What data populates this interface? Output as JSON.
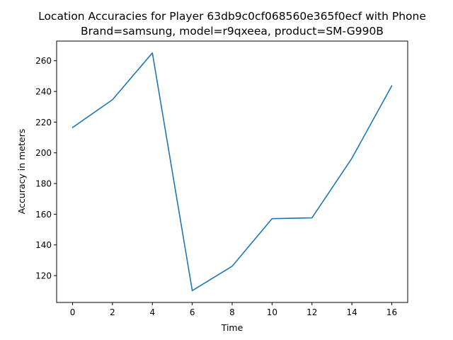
{
  "chart_data": {
    "type": "line",
    "title_line1": "Location Accuracies for Player 63db9c0cf068560e365f0ecf with Phone",
    "title_line2": "Brand=samsung, model=r9qxeea, product=SM-G990B",
    "xlabel": "Time",
    "ylabel": "Accuracy in meters",
    "x": [
      0,
      2,
      4,
      6,
      8,
      10,
      12,
      14,
      16
    ],
    "y": [
      216.5,
      234.6,
      265.1,
      110.2,
      126.1,
      157.1,
      157.6,
      196.4,
      243.6
    ],
    "xlim": [
      -0.8,
      16.8
    ],
    "ylim": [
      102.5,
      272.8
    ],
    "xticks": [
      "0",
      "2",
      "4",
      "6",
      "8",
      "10",
      "12",
      "14",
      "16"
    ],
    "yticks": [
      "120",
      "140",
      "160",
      "180",
      "200",
      "220",
      "240",
      "260"
    ],
    "line_color": "#1f77b4",
    "grid": false,
    "legend": "none"
  }
}
